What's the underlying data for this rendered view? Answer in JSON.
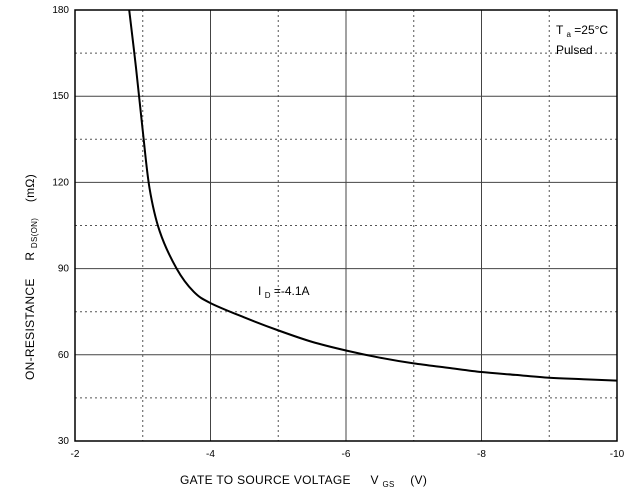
{
  "chart_data": {
    "type": "line",
    "xlabel": "GATE TO SOURCE VOLTAGE",
    "xlabel_symbol": "V",
    "xlabel_subscript": "GS",
    "xlabel_unit": "(V)",
    "ylabel": "ON-RESISTANCE",
    "ylabel_symbol": "R",
    "ylabel_subscript": "DS(ON)",
    "ylabel_unit": "(mΩ)",
    "xlim": [
      -2,
      -10
    ],
    "ylim": [
      30,
      180
    ],
    "x_ticks": [
      "-2",
      "-4",
      "-6",
      "-8",
      "-10"
    ],
    "x_tick_values": [
      -2,
      -4,
      -6,
      -8,
      -10
    ],
    "y_ticks": [
      "30",
      "60",
      "90",
      "120",
      "150",
      "180"
    ],
    "y_tick_values": [
      30,
      60,
      90,
      120,
      150,
      180
    ],
    "grid": true,
    "series": [
      {
        "label_prefix": "I",
        "label_subscript": "D",
        "label_value": "=-4.1A",
        "x": [
          -2.8,
          -2.9,
          -3.0,
          -3.1,
          -3.25,
          -3.5,
          -3.75,
          -4.0,
          -4.5,
          -5.0,
          -5.5,
          -6.0,
          -6.5,
          -7.0,
          -7.5,
          -8.0,
          -8.5,
          -9.0,
          -9.5,
          -10.0
        ],
        "values": [
          180,
          160,
          138,
          118,
          103,
          90,
          82,
          78,
          73,
          68.5,
          64.5,
          61.5,
          59,
          57,
          55.5,
          54,
          53,
          52,
          51.5,
          51
        ]
      }
    ],
    "annotations": {
      "temp_prefix": "T",
      "temp_subscript": "a",
      "temp_value": "=25°C",
      "mode": "Pulsed"
    }
  }
}
